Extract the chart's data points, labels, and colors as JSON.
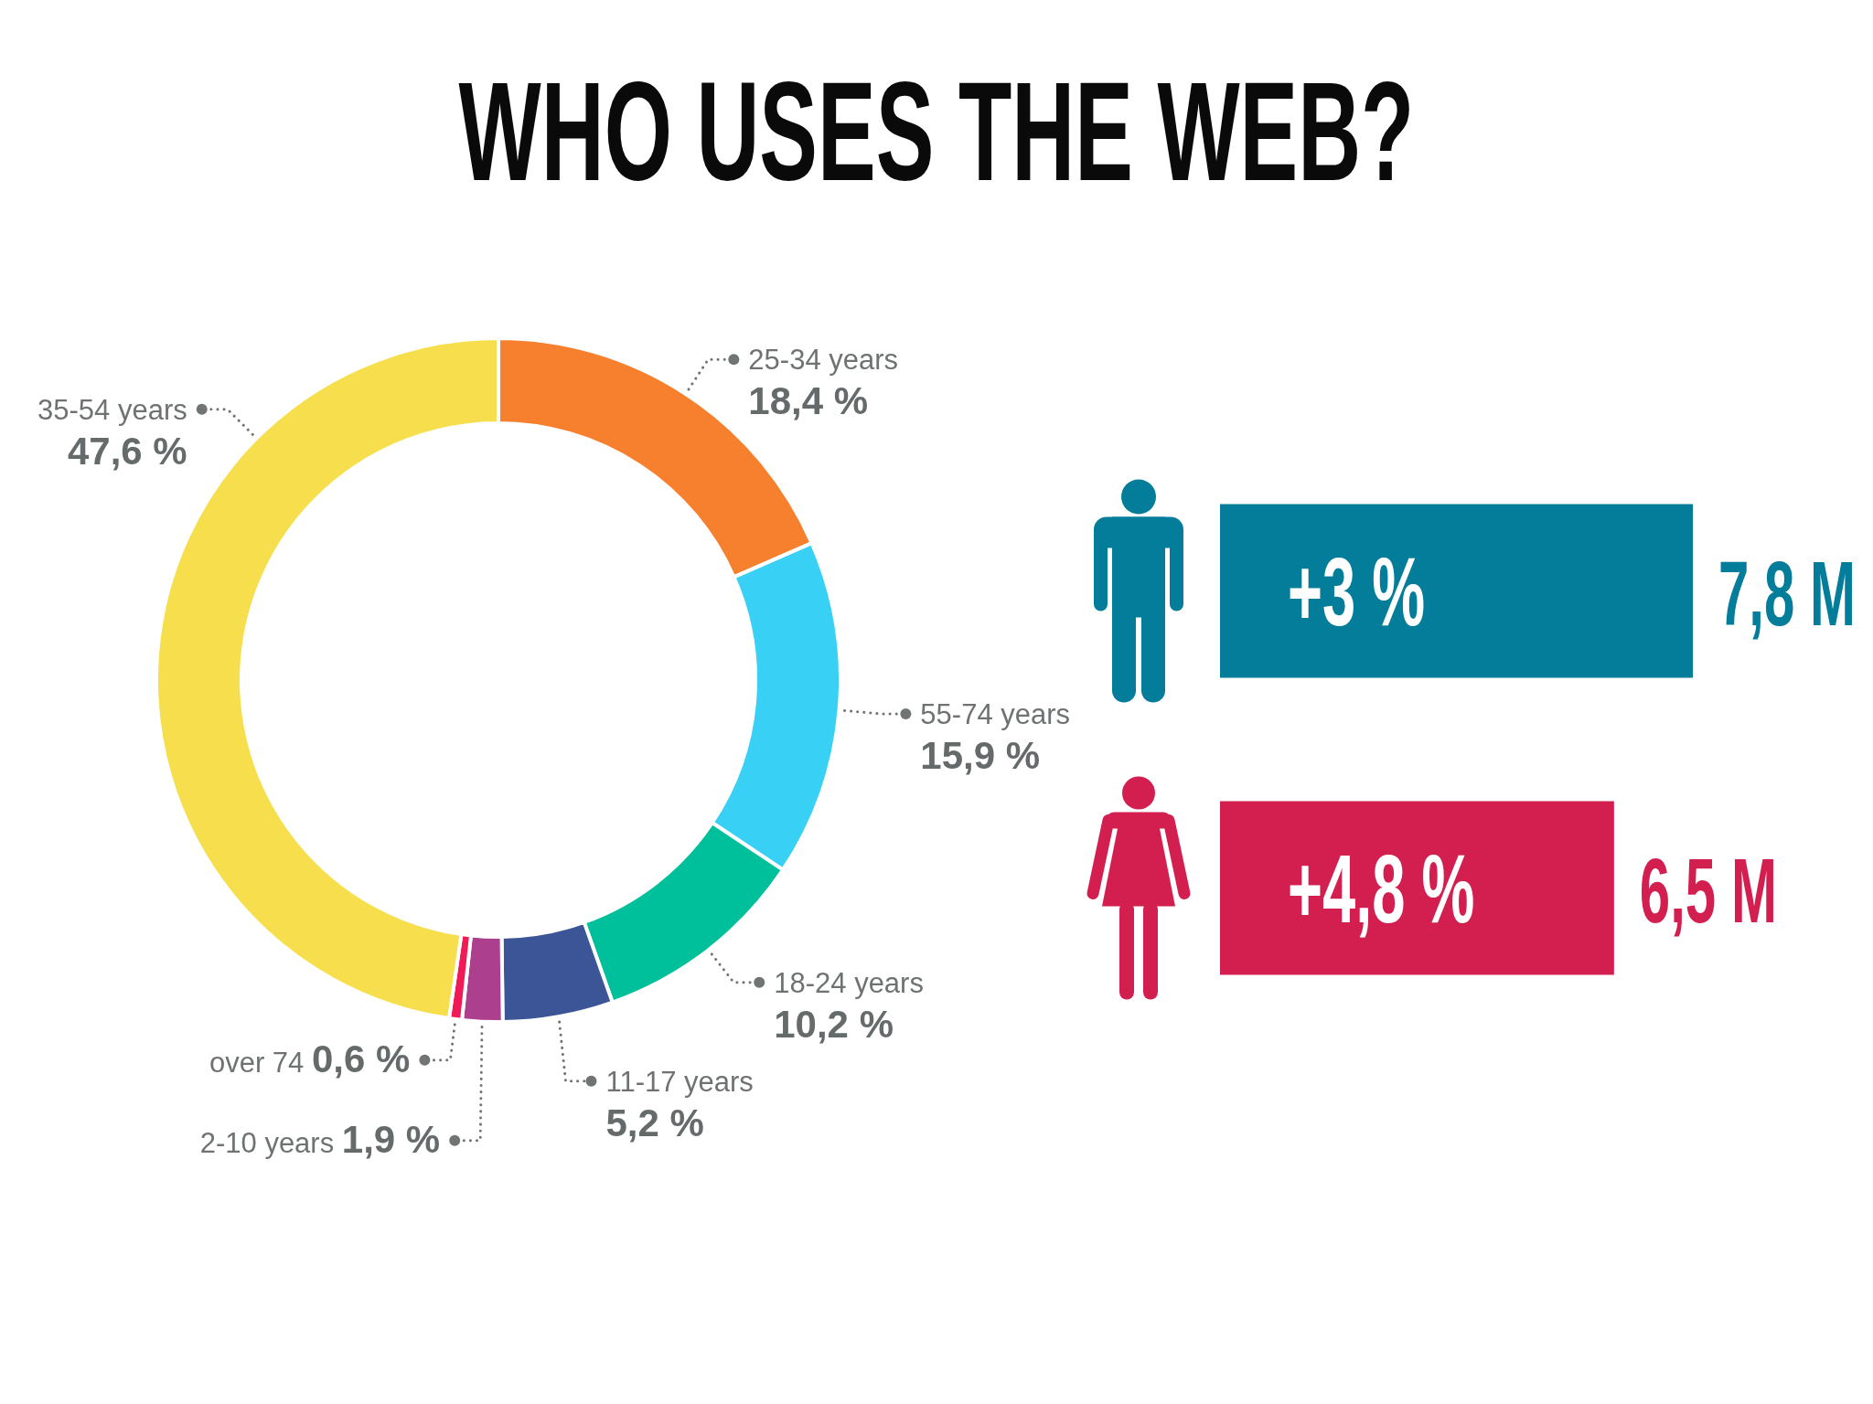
{
  "chart_data": [
    {
      "type": "donut",
      "title": "WHO USES THE WEB?",
      "categories": [
        "25-34 years",
        "55-74 years",
        "18-24 years",
        "11-17 years",
        "2-10 years",
        "over 74",
        "35-54 years"
      ],
      "values": [
        18.4,
        15.9,
        10.2,
        5.2,
        1.9,
        0.6,
        47.6
      ],
      "colors": [
        "#f7802f",
        "#38d0f5",
        "#00bf9b",
        "#3c5597",
        "#ad3f8f",
        "#f01a57",
        "#f6de4d"
      ],
      "value_labels": [
        "18,4 %",
        "15,9 %",
        "10,2 %",
        "5,2 %",
        "1,9 %",
        "0,6 %",
        "47,6 %"
      ]
    },
    {
      "type": "bar",
      "orientation": "horizontal",
      "categories": [
        null,
        null
      ],
      "values": [
        7.8,
        6.5
      ],
      "colors": [
        "#037d99",
        "#d31f50"
      ],
      "value_labels": [
        "7,8 M",
        "6,5 M"
      ],
      "annotations": [
        "+3 %",
        "+4,8 %"
      ]
    }
  ]
}
